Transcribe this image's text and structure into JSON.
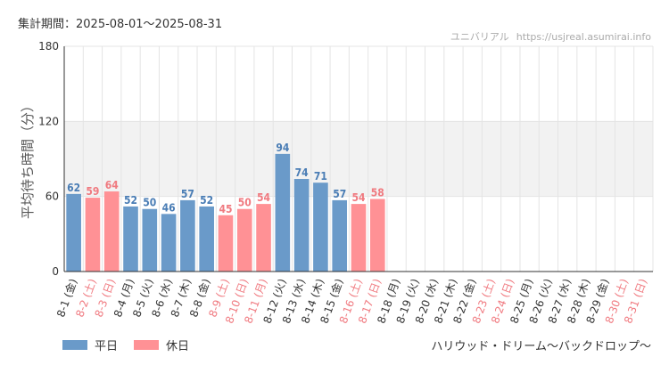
{
  "header": {
    "period_label": "集計期間：2025-08-01～2025-08-31",
    "source_name": "ユニバリアル",
    "source_url": "https://usjreal.asumirai.info"
  },
  "legend": {
    "weekday_label": "平日",
    "holiday_label": "休日"
  },
  "colors": {
    "weekday": "#6a9ac9",
    "holiday": "#ff9195",
    "weekday_label": "#4a7db5",
    "holiday_label": "#f07a80",
    "band": "#f2f2f2",
    "grid": "#e4e4e4",
    "axis": "#333333"
  },
  "footer": {
    "attraction_name": "ハリウッド・ドリーム～バックドロップ～"
  },
  "chart_data": {
    "type": "bar",
    "title": "",
    "xlabel": "",
    "ylabel": "平均待ち時間（分）",
    "ylim": [
      0,
      180
    ],
    "yticks": [
      0,
      60,
      120,
      180
    ],
    "highlight_band": [
      60,
      120
    ],
    "grid": true,
    "legend_position": "bottom-left",
    "categories": [
      "8-1 (金)",
      "8-2 (土)",
      "8-3 (日)",
      "8-4 (月)",
      "8-5 (火)",
      "8-6 (水)",
      "8-7 (木)",
      "8-8 (金)",
      "8-9 (土)",
      "8-10 (日)",
      "8-11 (月)",
      "8-12 (火)",
      "8-13 (水)",
      "8-14 (木)",
      "8-15 (金)",
      "8-16 (土)",
      "8-17 (日)",
      "8-18 (月)",
      "8-19 (火)",
      "8-20 (水)",
      "8-21 (木)",
      "8-22 (金)",
      "8-23 (土)",
      "8-24 (日)",
      "8-25 (月)",
      "8-26 (火)",
      "8-27 (水)",
      "8-28 (木)",
      "8-29 (金)",
      "8-30 (土)",
      "8-31 (日)"
    ],
    "values": [
      62,
      59,
      64,
      52,
      50,
      46,
      57,
      52,
      45,
      50,
      54,
      94,
      74,
      71,
      57,
      54,
      58,
      null,
      null,
      null,
      null,
      null,
      null,
      null,
      null,
      null,
      null,
      null,
      null,
      null,
      null
    ],
    "day_type": [
      "weekday",
      "holiday",
      "holiday",
      "weekday",
      "weekday",
      "weekday",
      "weekday",
      "weekday",
      "holiday",
      "holiday",
      "holiday",
      "weekday",
      "weekday",
      "weekday",
      "weekday",
      "holiday",
      "holiday",
      "weekday",
      "weekday",
      "weekday",
      "weekday",
      "weekday",
      "holiday",
      "holiday",
      "weekday",
      "weekday",
      "weekday",
      "weekday",
      "weekday",
      "holiday",
      "holiday"
    ]
  }
}
